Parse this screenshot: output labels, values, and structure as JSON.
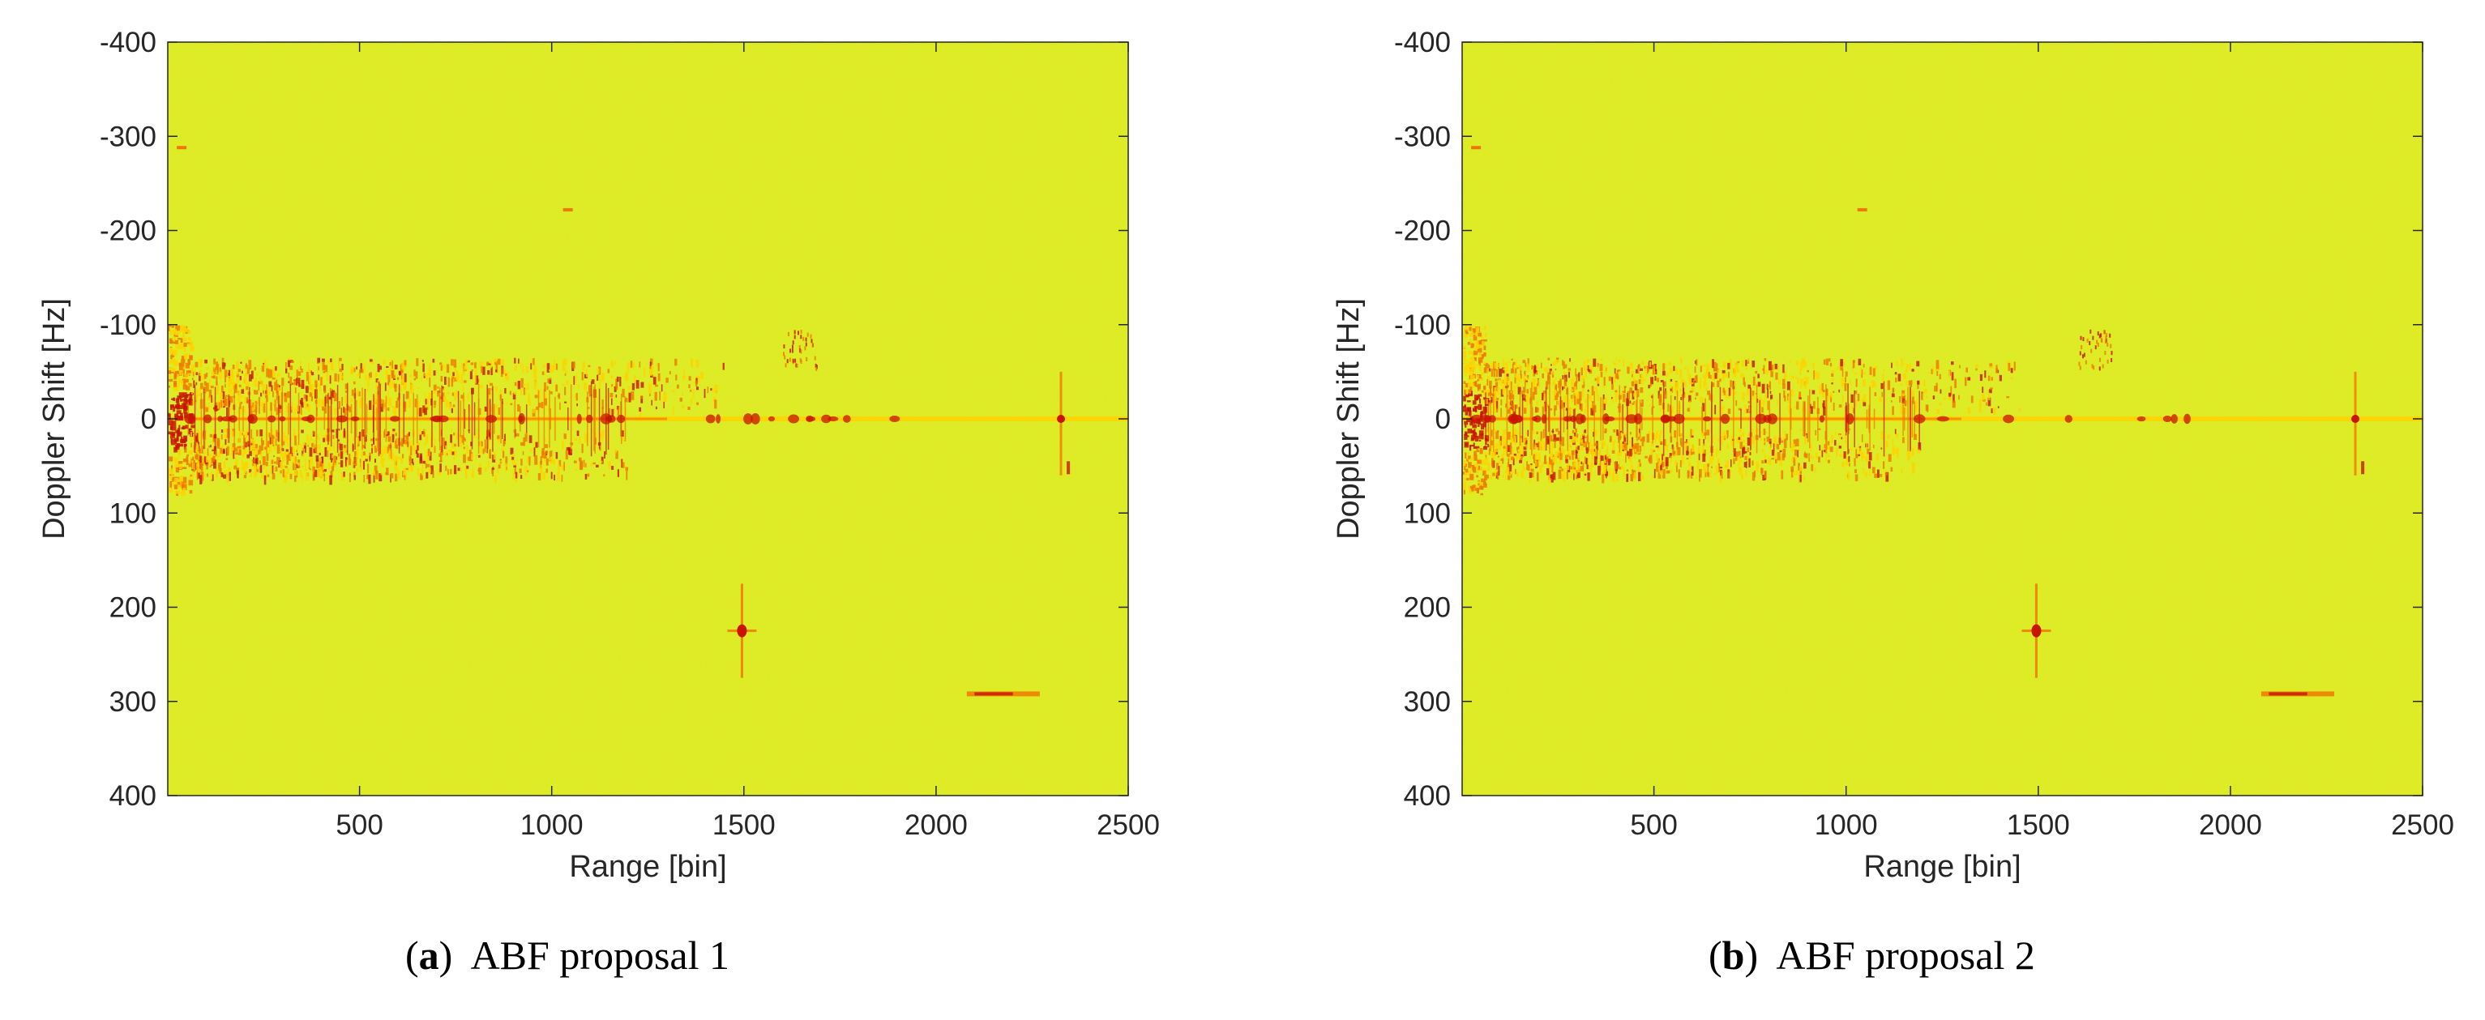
{
  "colors": {
    "background": "#d9f02b",
    "background_alt": "#e9f51c",
    "weak": "#ffd200",
    "medium": "#f07800",
    "strong": "#c81400",
    "axis": "#262626"
  },
  "chart_data": [
    {
      "type": "heatmap",
      "colormap": "yellow-to-red (autumn), low intensity yellow-green, strong returns red",
      "xlabel": "Range [bin]",
      "ylabel": "Doppler Shift [Hz]",
      "xlim": [
        1,
        2500
      ],
      "ylim": [
        -400,
        400
      ],
      "y_reversed": true,
      "xticks": [
        500,
        1000,
        1500,
        2000,
        2500
      ],
      "yticks": [
        -400,
        -300,
        -200,
        -100,
        0,
        100,
        200,
        300,
        400
      ],
      "caption": {
        "label": "a",
        "text": "ABF proposal 1"
      },
      "features": [
        {
          "name": "zero-Doppler clutter ridge",
          "x": [
            1,
            2500
          ],
          "y": 0
        },
        {
          "name": "near-range clutter",
          "x": [
            1,
            60
          ],
          "y": [
            -100,
            80
          ]
        },
        {
          "name": "clutter band upper",
          "x": [
            60,
            1450
          ],
          "y": [
            -65,
            -10
          ]
        },
        {
          "name": "clutter band lower",
          "x": [
            60,
            1200
          ],
          "y": [
            10,
            60
          ]
        },
        {
          "name": "target",
          "x": 1495,
          "y": 225
        },
        {
          "name": "target",
          "x": 2150,
          "y": 292
        },
        {
          "name": "target",
          "x": 2325,
          "y": 0
        },
        {
          "name": "target",
          "x": 1040,
          "y": -222
        },
        {
          "name": "target",
          "x": 35,
          "y": -288
        }
      ]
    },
    {
      "type": "heatmap",
      "colormap": "yellow-to-red (autumn), low intensity yellow-green, strong returns red",
      "xlabel": "Range [bin]",
      "ylabel": "Doppler Shift [Hz]",
      "xlim": [
        1,
        2500
      ],
      "ylim": [
        -400,
        400
      ],
      "y_reversed": true,
      "xticks": [
        500,
        1000,
        1500,
        2000,
        2500
      ],
      "yticks": [
        -400,
        -300,
        -200,
        -100,
        0,
        100,
        200,
        300,
        400
      ],
      "caption": {
        "label": "b",
        "text": "ABF proposal 2"
      },
      "features": [
        {
          "name": "zero-Doppler clutter ridge",
          "x": [
            1,
            2500
          ],
          "y": 0
        },
        {
          "name": "near-range clutter",
          "x": [
            1,
            60
          ],
          "y": [
            -100,
            80
          ]
        },
        {
          "name": "clutter band upper",
          "x": [
            60,
            1450
          ],
          "y": [
            -65,
            -10
          ]
        },
        {
          "name": "clutter band lower",
          "x": [
            60,
            1200
          ],
          "y": [
            10,
            60
          ]
        },
        {
          "name": "target",
          "x": 1495,
          "y": 225
        },
        {
          "name": "target",
          "x": 2150,
          "y": 292
        },
        {
          "name": "target",
          "x": 2325,
          "y": 0
        },
        {
          "name": "target",
          "x": 1040,
          "y": -222
        },
        {
          "name": "target",
          "x": 35,
          "y": -288
        }
      ]
    }
  ]
}
